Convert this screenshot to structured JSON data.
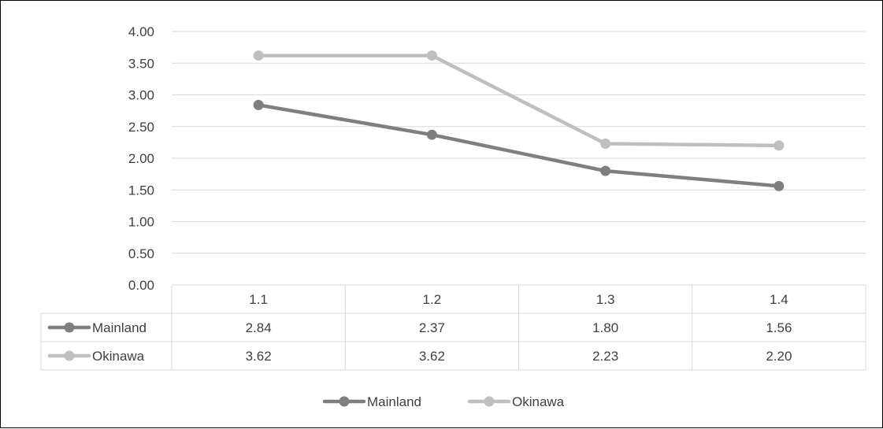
{
  "chart_data": {
    "type": "line",
    "categories": [
      "1.1",
      "1.2",
      "1.3",
      "1.4"
    ],
    "series": [
      {
        "name": "Mainland",
        "values": [
          2.84,
          2.37,
          1.8,
          1.56
        ],
        "color": "#7f7f7f"
      },
      {
        "name": "Okinawa",
        "values": [
          3.62,
          3.62,
          2.23,
          2.2
        ],
        "color": "#bfbfbf"
      }
    ],
    "y_ticks": [
      "0.00",
      "0.50",
      "1.00",
      "1.50",
      "2.00",
      "2.50",
      "3.00",
      "3.50",
      "4.00"
    ],
    "ylim": [
      0,
      4
    ],
    "grid": true,
    "data_table": true,
    "table_values": [
      [
        "2.84",
        "2.37",
        "1.80",
        "1.56"
      ],
      [
        "3.62",
        "3.62",
        "2.23",
        "2.20"
      ]
    ],
    "legend_position": "bottom",
    "title": "",
    "xlabel": "",
    "ylabel": ""
  }
}
